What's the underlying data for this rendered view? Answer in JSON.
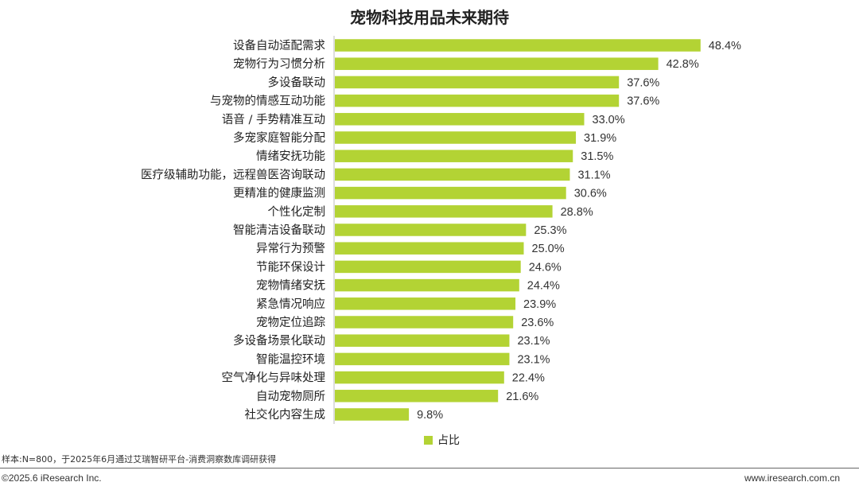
{
  "chart_data": {
    "type": "bar",
    "orientation": "horizontal",
    "title": "宠物科技用品未来期待",
    "categories": [
      "设备自动适配需求",
      "宠物行为习惯分析",
      "多设备联动",
      "与宠物的情感互动功能",
      "语音 / 手势精准互动",
      "多宠家庭智能分配",
      "情绪安抚功能",
      "医疗级辅助功能，远程兽医咨询联动",
      "更精准的健康监测",
      "个性化定制",
      "智能清洁设备联动",
      "异常行为预警",
      "节能环保设计",
      "宠物情绪安抚",
      "紧急情况响应",
      "宠物定位追踪",
      "多设备场景化联动",
      "智能温控环境",
      "空气净化与异味处理",
      "自动宠物厕所",
      "社交化内容生成"
    ],
    "series": [
      {
        "name": "占比",
        "values": [
          48.4,
          42.8,
          37.6,
          37.6,
          33.0,
          31.9,
          31.5,
          31.1,
          30.6,
          28.8,
          25.3,
          25.0,
          24.6,
          24.4,
          23.9,
          23.6,
          23.1,
          23.1,
          22.4,
          21.6,
          9.8
        ],
        "labels": [
          "48.4%",
          "42.8%",
          "37.6%",
          "37.6%",
          "33.0%",
          "31.9%",
          "31.5%",
          "31.1%",
          "30.6%",
          "28.8%",
          "25.3%",
          "25.0%",
          "24.6%",
          "24.4%",
          "23.9%",
          "23.6%",
          "23.1%",
          "23.1%",
          "22.4%",
          "21.6%",
          "9.8%"
        ],
        "color": "#b3d334"
      }
    ],
    "legend": "bottom",
    "grid": false
  },
  "note": "样本:N=800，于2025年6月通过艾瑞智研平台-消费洞察数库调研获得",
  "copyright": "©2025.6 iResearch Inc.",
  "website": "www.iresearch.com.cn"
}
